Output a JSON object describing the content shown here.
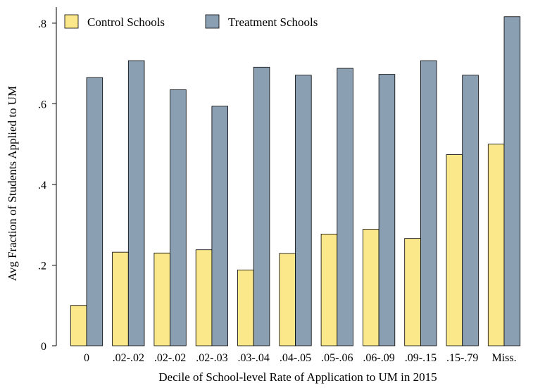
{
  "chart_data": {
    "type": "bar",
    "xlabel": "Decile of School-level Rate of Application to UM in 2015",
    "ylabel": "Avg Fraction of Students Applied to UM",
    "ylim": [
      0,
      0.84
    ],
    "yticks": [
      {
        "value": 0,
        "label": "0"
      },
      {
        "value": 0.2,
        "label": ".2"
      },
      {
        "value": 0.4,
        "label": ".4"
      },
      {
        "value": 0.6,
        "label": ".6"
      },
      {
        "value": 0.8,
        "label": ".8"
      }
    ],
    "grid": false,
    "legend_position": "top-left",
    "categories": [
      "0",
      ".02-.02",
      ".02-.02",
      ".02-.03",
      ".03-.04",
      ".04-.05",
      ".05-.06",
      ".06-.09",
      ".09-.15",
      ".15-.79",
      "Miss."
    ],
    "series": [
      {
        "name": "Control Schools",
        "color": "#fbe88a",
        "values": [
          0.1,
          0.232,
          0.23,
          0.238,
          0.188,
          0.229,
          0.277,
          0.289,
          0.266,
          0.474,
          0.5
        ]
      },
      {
        "name": "Treatment Schools",
        "color": "#8b9fb3",
        "values": [
          0.665,
          0.707,
          0.635,
          0.594,
          0.691,
          0.671,
          0.688,
          0.673,
          0.707,
          0.671,
          0.816
        ]
      }
    ]
  }
}
